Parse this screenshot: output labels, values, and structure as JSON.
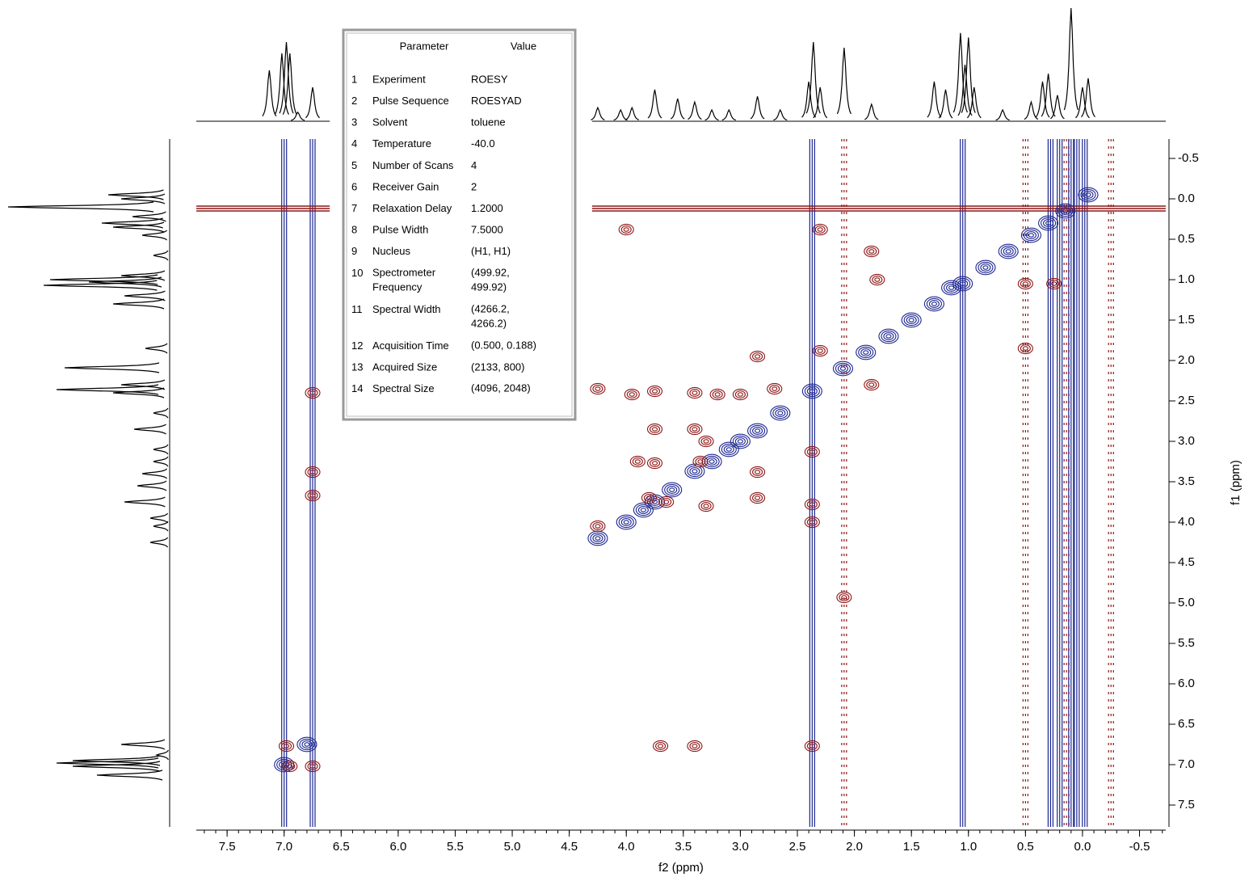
{
  "chart_data": {
    "type": "nmr2d",
    "x_label": "f2 (ppm)",
    "y_label": "f1 (ppm)",
    "xlim": [
      7.77,
      -0.73
    ],
    "ylim": [
      -0.74,
      7.77
    ],
    "xticks": [
      7.5,
      {
        "value": 7,
        "label": "7.0"
      },
      6.5,
      {
        "value": 6,
        "label": "6.0"
      },
      5.5,
      {
        "value": 5,
        "label": "5.0"
      },
      4.5,
      {
        "value": 4,
        "label": "4.0"
      },
      3.5,
      {
        "value": 3,
        "label": "3.0"
      },
      2.5,
      {
        "value": 2,
        "label": "2.0"
      },
      1.5,
      {
        "value": 1,
        "label": "1.0"
      },
      0.5,
      {
        "value": 0,
        "label": "0.0"
      },
      -0.5
    ],
    "yticks": [
      -0.5,
      {
        "value": 0,
        "label": "0.0"
      },
      0.5,
      {
        "value": 1,
        "label": "1.0"
      },
      1.5,
      {
        "value": 2,
        "label": "2.0"
      },
      2.5,
      {
        "value": 3,
        "label": "3.0"
      },
      3.5,
      {
        "value": 4,
        "label": "4.0"
      },
      4.5,
      {
        "value": 5,
        "label": "5.0"
      },
      5.5,
      {
        "value": 6,
        "label": "6.0"
      },
      6.5,
      {
        "value": 7,
        "label": "7.0"
      },
      7.5
    ],
    "excluded_f2": [
      6.6,
      4.3
    ],
    "positive_color": "#1c2690",
    "negative_color": "#8e1616",
    "positive_peaks": {
      "f2": [
        4.25,
        4.0,
        3.85,
        3.75,
        3.6,
        3.4,
        3.25,
        3.1,
        3.0,
        2.85,
        2.65,
        2.37,
        2.1,
        1.9,
        1.7,
        1.5,
        1.3,
        1.15,
        1.05,
        0.85,
        0.65,
        0.45,
        0.3,
        0.15,
        -0.05,
        7.0,
        6.8
      ],
      "f1": [
        4.2,
        4.0,
        3.85,
        3.75,
        3.6,
        3.37,
        3.25,
        3.1,
        3.0,
        2.87,
        2.65,
        2.38,
        2.1,
        1.9,
        1.7,
        1.5,
        1.3,
        1.1,
        1.05,
        0.85,
        0.65,
        0.45,
        0.3,
        0.15,
        -0.05,
        7.0,
        6.75
      ]
    },
    "negative_peaks": {
      "f2": [
        4.0,
        2.3,
        1.85,
        1.8,
        0.5,
        0.25,
        0.5,
        2.85,
        2.3,
        4.25,
        3.95,
        3.75,
        3.4,
        3.2,
        3.0,
        2.7,
        1.85,
        3.75,
        3.4,
        3.3,
        3.9,
        3.75,
        3.35,
        2.85,
        2.37,
        3.8,
        3.65,
        3.3,
        2.85,
        2.37,
        2.37,
        4.25,
        3.7,
        3.4,
        2.37,
        6.98,
        6.75,
        6.75,
        6.75,
        6.75,
        6.95,
        2.09
      ],
      "f1": [
        0.38,
        0.38,
        0.65,
        1.0,
        1.05,
        1.05,
        1.85,
        1.95,
        1.88,
        2.35,
        2.42,
        2.38,
        2.4,
        2.42,
        2.42,
        2.35,
        2.3,
        2.85,
        2.85,
        3.0,
        3.25,
        3.27,
        3.25,
        3.38,
        3.13,
        3.7,
        3.75,
        3.8,
        3.7,
        3.78,
        4.0,
        4.05,
        6.77,
        6.77,
        6.77,
        6.77,
        7.02,
        2.4,
        3.38,
        3.67,
        7.02,
        4.93
      ]
    },
    "positive_stripes_f2": [
      7.0,
      6.75,
      2.37,
      1.05,
      0.28,
      0.2,
      0.1,
      0.05,
      -0.02
    ],
    "negative_stripes_f2": [
      2.09,
      0.5,
      0.14,
      -0.25
    ],
    "negative_stripe_f1": 0.12,
    "projection": {
      "ppm": [
        7.13,
        7.02,
        6.98,
        6.95,
        6.88,
        6.75,
        4.25,
        4.05,
        3.95,
        3.75,
        3.55,
        3.4,
        3.25,
        3.1,
        2.85,
        2.65,
        2.4,
        2.36,
        2.3,
        2.09,
        1.85,
        1.3,
        1.2,
        1.07,
        1.03,
        1.0,
        0.95,
        0.7,
        0.45,
        0.35,
        0.3,
        0.22,
        0.1,
        0.0,
        -0.05
      ],
      "height": [
        0.45,
        0.6,
        0.7,
        0.6,
        0.08,
        0.3,
        0.12,
        0.1,
        0.12,
        0.28,
        0.2,
        0.17,
        0.1,
        0.1,
        0.22,
        0.1,
        0.35,
        0.7,
        0.3,
        0.65,
        0.15,
        0.35,
        0.28,
        0.78,
        0.5,
        0.74,
        0.3,
        0.1,
        0.17,
        0.35,
        0.42,
        0.23,
        1.0,
        0.3,
        0.38
      ]
    }
  },
  "table": {
    "header": [
      "Parameter",
      "Value"
    ],
    "rows": [
      [
        "1",
        "Experiment",
        "ROESY"
      ],
      [
        "2",
        "Pulse Sequence",
        "ROESYAD"
      ],
      [
        "3",
        "Solvent",
        "toluene"
      ],
      [
        "4",
        "Temperature",
        "-40.0"
      ],
      [
        "5",
        "Number of Scans",
        "4"
      ],
      [
        "6",
        "Receiver Gain",
        "2"
      ],
      [
        "7",
        "Relaxation Delay",
        "1.2000"
      ],
      [
        "8",
        "Pulse Width",
        "7.5000"
      ],
      [
        "9",
        "Nucleus",
        "(H1, H1)"
      ],
      [
        "10",
        "Spectrometer Frequency",
        "(499.92, 499.92)"
      ],
      [
        "11",
        "Spectral Width",
        "(4266.2, 4266.2)"
      ],
      [
        "12",
        "Acquisition Time",
        "(0.500, 0.188)"
      ],
      [
        "13",
        "Acquired Size",
        "(2133, 800)"
      ],
      [
        "14",
        "Spectral Size",
        "(4096, 2048)"
      ]
    ]
  }
}
